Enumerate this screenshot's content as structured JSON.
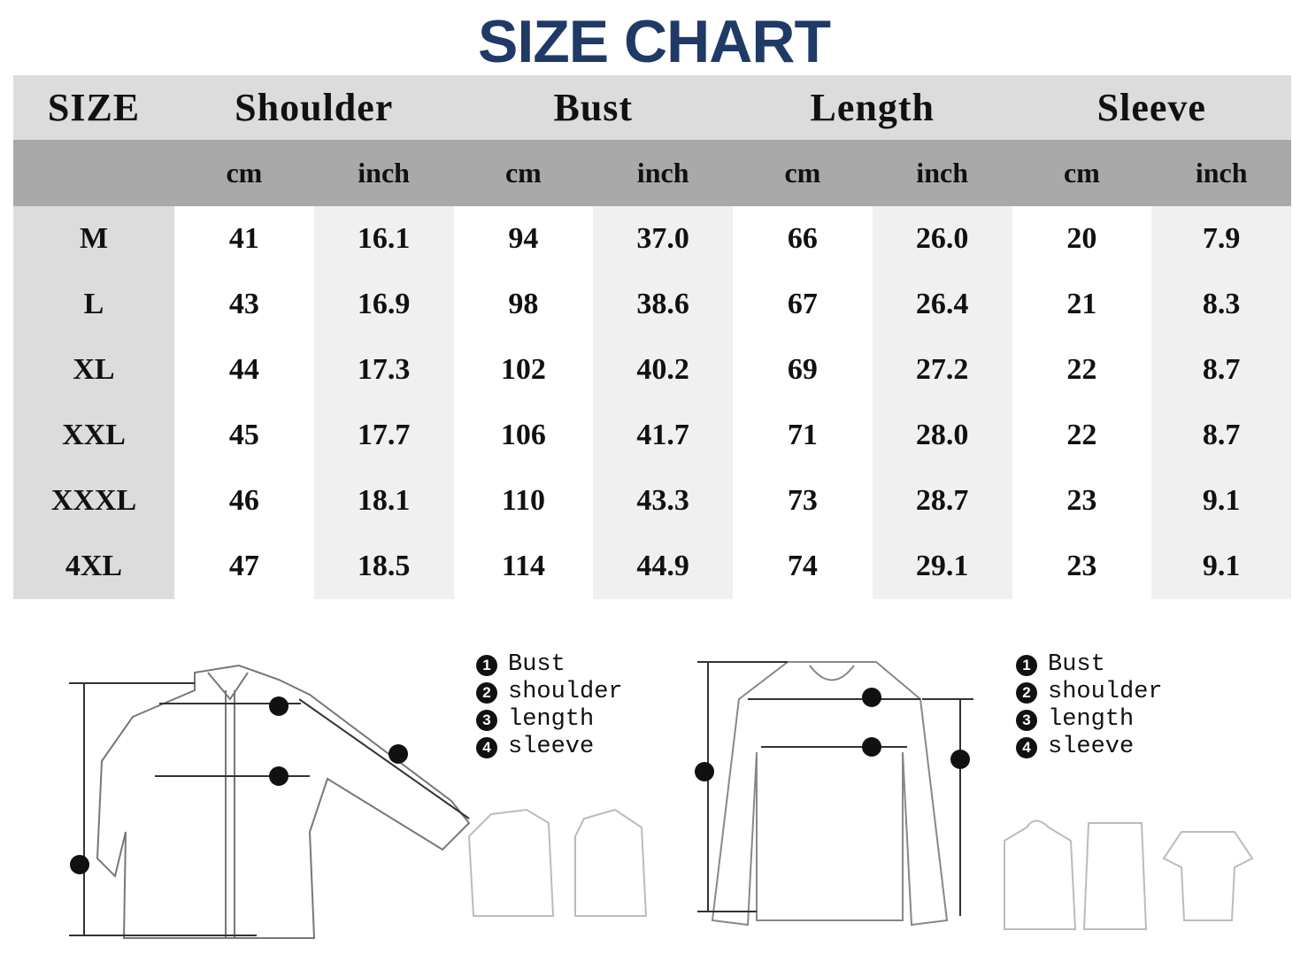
{
  "title": "SIZE CHART",
  "headers": {
    "size": "SIZE",
    "groups": [
      "Shoulder",
      "Bust",
      "Length",
      "Sleeve"
    ],
    "units": [
      "cm",
      "inch",
      "cm",
      "inch",
      "cm",
      "inch",
      "cm",
      "inch"
    ]
  },
  "rows": [
    {
      "size": "M",
      "values": [
        "41",
        "16.1",
        "94",
        "37.0",
        "66",
        "26.0",
        "20",
        "7.9"
      ]
    },
    {
      "size": "L",
      "values": [
        "43",
        "16.9",
        "98",
        "38.6",
        "67",
        "26.4",
        "21",
        "8.3"
      ]
    },
    {
      "size": "XL",
      "values": [
        "44",
        "17.3",
        "102",
        "40.2",
        "69",
        "27.2",
        "22",
        "8.7"
      ]
    },
    {
      "size": "XXL",
      "values": [
        "45",
        "17.7",
        "106",
        "41.7",
        "71",
        "28.0",
        "22",
        "8.7"
      ]
    },
    {
      "size": "XXXL",
      "values": [
        "46",
        "18.1",
        "110",
        "43.3",
        "73",
        "28.7",
        "23",
        "9.1"
      ]
    },
    {
      "size": "4XL",
      "values": [
        "47",
        "18.5",
        "114",
        "44.9",
        "74",
        "29.1",
        "23",
        "9.1"
      ]
    }
  ],
  "legend": [
    {
      "num": "1",
      "label": "Bust"
    },
    {
      "num": "2",
      "label": "shoulder"
    },
    {
      "num": "3",
      "label": "length"
    },
    {
      "num": "4",
      "label": "sleeve"
    }
  ],
  "colors": {
    "title": "#1f3a66",
    "header": "#dcdcdc",
    "subheader": "#a9a9a9",
    "alt_column": "#f0f0f0"
  }
}
